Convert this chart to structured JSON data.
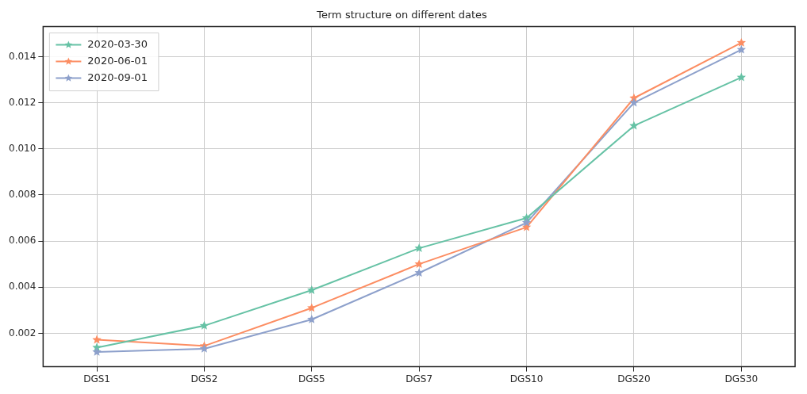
{
  "chart_data": {
    "type": "line",
    "title": "Term structure on different dates",
    "categories": [
      "DGS1",
      "DGS2",
      "DGS5",
      "DGS7",
      "DGS10",
      "DGS20",
      "DGS30"
    ],
    "series": [
      {
        "name": "2020-03-30",
        "color": "#66c2a5",
        "values": [
          0.00138,
          0.00233,
          0.00387,
          0.00569,
          0.007,
          0.011,
          0.0131
        ]
      },
      {
        "name": "2020-06-01",
        "color": "#fc8d62",
        "values": [
          0.00172,
          0.00145,
          0.0031,
          0.005,
          0.0066,
          0.0122,
          0.0146
        ]
      },
      {
        "name": "2020-09-01",
        "color": "#8da0cb",
        "values": [
          0.00119,
          0.00133,
          0.0026,
          0.00462,
          0.0068,
          0.012,
          0.0143
        ]
      }
    ],
    "ylim": [
      0.00055,
      0.0153
    ],
    "yticks": [
      0.002,
      0.004,
      0.006,
      0.008,
      {
        "value": 0.01,
        "label": "0.010"
      },
      0.012,
      0.014
    ],
    "grid": true,
    "legend": "top left",
    "marker": "star",
    "line_style": "solid"
  }
}
